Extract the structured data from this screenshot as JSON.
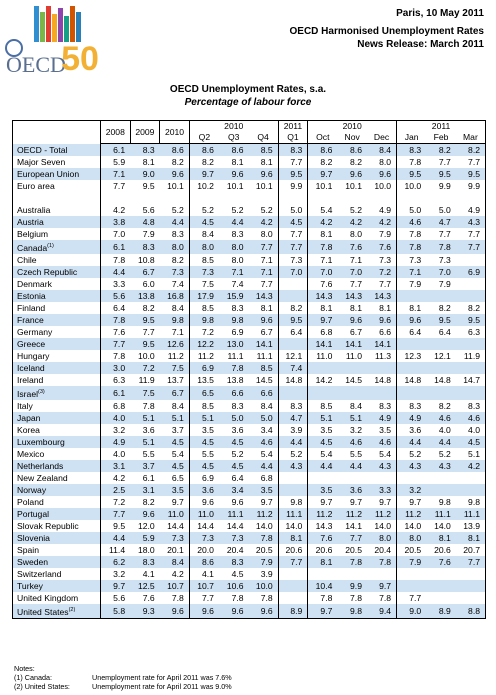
{
  "logo": {
    "text": "OECD",
    "anniversary": "50"
  },
  "header": {
    "date": "Paris, 10 May 2011",
    "title": "OECD Harmonised Unemployment Rates",
    "release": "News Release: March 2011"
  },
  "title": "OECD Unemployment Rates, s.a.",
  "subtitle": "Percentage of labour force",
  "table": {
    "years": [
      "2008",
      "2009",
      "2010"
    ],
    "groups": [
      {
        "label": "2010",
        "cols": [
          "Q2",
          "Q3",
          "Q4"
        ]
      },
      {
        "label": "2011",
        "cols": [
          "Q1"
        ]
      },
      {
        "label": "2010",
        "cols": [
          "Oct",
          "Nov",
          "Dec"
        ]
      },
      {
        "label": "2011",
        "cols": [
          "Jan",
          "Feb",
          "Mar"
        ]
      }
    ],
    "aggregates": [
      {
        "name": "OECD - Total",
        "cells": [
          "6.1",
          "8.3",
          "8.6",
          "8.6",
          "8.6",
          "8.5",
          "8.3",
          "8.6",
          "8.6",
          "8.4",
          "8.3",
          "8.2",
          "8.2"
        ]
      },
      {
        "name": "Major Seven",
        "cells": [
          "5.9",
          "8.1",
          "8.2",
          "8.2",
          "8.1",
          "8.1",
          "7.7",
          "8.2",
          "8.2",
          "8.0",
          "7.8",
          "7.7",
          "7.7"
        ]
      },
      {
        "name": "European Union",
        "cells": [
          "7.1",
          "9.0",
          "9.6",
          "9.7",
          "9.6",
          "9.6",
          "9.5",
          "9.7",
          "9.6",
          "9.6",
          "9.5",
          "9.5",
          "9.5"
        ]
      },
      {
        "name": "Euro area",
        "cells": [
          "7.7",
          "9.5",
          "10.1",
          "10.2",
          "10.1",
          "10.1",
          "9.9",
          "10.1",
          "10.1",
          "10.0",
          "10.0",
          "9.9",
          "9.9"
        ]
      }
    ],
    "countries": [
      {
        "name": "Australia",
        "cells": [
          "4.2",
          "5.6",
          "5.2",
          "5.2",
          "5.2",
          "5.2",
          "5.0",
          "5.4",
          "5.2",
          "4.9",
          "5.0",
          "5.0",
          "4.9"
        ]
      },
      {
        "name": "Austria",
        "cells": [
          "3.8",
          "4.8",
          "4.4",
          "4.5",
          "4.4",
          "4.2",
          "4.5",
          "4.2",
          "4.2",
          "4.2",
          "4.6",
          "4.7",
          "4.3"
        ]
      },
      {
        "name": "Belgium",
        "cells": [
          "7.0",
          "7.9",
          "8.3",
          "8.4",
          "8.3",
          "8.0",
          "7.7",
          "8.1",
          "8.0",
          "7.9",
          "7.8",
          "7.7",
          "7.7"
        ]
      },
      {
        "name": "Canada",
        "note": "(1)",
        "cells": [
          "6.1",
          "8.3",
          "8.0",
          "8.0",
          "8.0",
          "7.7",
          "7.7",
          "7.8",
          "7.6",
          "7.6",
          "7.8",
          "7.8",
          "7.7"
        ]
      },
      {
        "name": "Chile",
        "cells": [
          "7.8",
          "10.8",
          "8.2",
          "8.5",
          "8.0",
          "7.1",
          "7.3",
          "7.1",
          "7.1",
          "7.3",
          "7.3",
          "7.3",
          null
        ]
      },
      {
        "name": "Czech Republic",
        "cells": [
          "4.4",
          "6.7",
          "7.3",
          "7.3",
          "7.1",
          "7.1",
          "7.0",
          "7.0",
          "7.0",
          "7.2",
          "7.1",
          "7.0",
          "6.9"
        ]
      },
      {
        "name": "Denmark",
        "cells": [
          "3.3",
          "6.0",
          "7.4",
          "7.5",
          "7.4",
          "7.7",
          null,
          "7.6",
          "7.7",
          "7.7",
          "7.9",
          "7.9",
          null
        ]
      },
      {
        "name": "Estonia",
        "cells": [
          "5.6",
          "13.8",
          "16.8",
          "17.9",
          "15.9",
          "14.3",
          null,
          "14.3",
          "14.3",
          "14.3",
          null,
          null,
          null
        ]
      },
      {
        "name": "Finland",
        "cells": [
          "6.4",
          "8.2",
          "8.4",
          "8.5",
          "8.3",
          "8.1",
          "8.2",
          "8.1",
          "8.1",
          "8.1",
          "8.1",
          "8.2",
          "8.2"
        ]
      },
      {
        "name": "France",
        "cells": [
          "7.8",
          "9.5",
          "9.8",
          "9.8",
          "9.8",
          "9.6",
          "9.5",
          "9.7",
          "9.6",
          "9.6",
          "9.6",
          "9.5",
          "9.5"
        ]
      },
      {
        "name": "Germany",
        "cells": [
          "7.6",
          "7.7",
          "7.1",
          "7.2",
          "6.9",
          "6.7",
          "6.4",
          "6.8",
          "6.7",
          "6.6",
          "6.4",
          "6.4",
          "6.3"
        ]
      },
      {
        "name": "Greece",
        "cells": [
          "7.7",
          "9.5",
          "12.6",
          "12.2",
          "13.0",
          "14.1",
          null,
          "14.1",
          "14.1",
          "14.1",
          null,
          null,
          null
        ]
      },
      {
        "name": "Hungary",
        "cells": [
          "7.8",
          "10.0",
          "11.2",
          "11.2",
          "11.1",
          "11.1",
          "12.1",
          "11.0",
          "11.0",
          "11.3",
          "12.3",
          "12.1",
          "11.9"
        ]
      },
      {
        "name": "Iceland",
        "cells": [
          "3.0",
          "7.2",
          "7.5",
          "6.9",
          "7.8",
          "8.5",
          "7.4",
          null,
          null,
          null,
          null,
          null,
          null
        ]
      },
      {
        "name": "Ireland",
        "cells": [
          "6.3",
          "11.9",
          "13.7",
          "13.5",
          "13.8",
          "14.5",
          "14.8",
          "14.2",
          "14.5",
          "14.8",
          "14.8",
          "14.8",
          "14.7"
        ]
      },
      {
        "name": "Israel",
        "note": "(3)",
        "cells": [
          "6.1",
          "7.5",
          "6.7",
          "6.5",
          "6.6",
          "6.6",
          null,
          null,
          null,
          null,
          null,
          null,
          null
        ]
      },
      {
        "name": "Italy",
        "cells": [
          "6.8",
          "7.8",
          "8.4",
          "8.5",
          "8.3",
          "8.4",
          "8.3",
          "8.5",
          "8.4",
          "8.3",
          "8.3",
          "8.2",
          "8.3"
        ]
      },
      {
        "name": "Japan",
        "cells": [
          "4.0",
          "5.1",
          "5.1",
          "5.1",
          "5.0",
          "5.0",
          "4.7",
          "5.1",
          "5.1",
          "4.9",
          "4.9",
          "4.6",
          "4.6"
        ]
      },
      {
        "name": "Korea",
        "cells": [
          "3.2",
          "3.6",
          "3.7",
          "3.5",
          "3.6",
          "3.4",
          "3.9",
          "3.5",
          "3.2",
          "3.5",
          "3.6",
          "4.0",
          "4.0"
        ]
      },
      {
        "name": "Luxembourg",
        "cells": [
          "4.9",
          "5.1",
          "4.5",
          "4.5",
          "4.5",
          "4.6",
          "4.4",
          "4.5",
          "4.6",
          "4.6",
          "4.4",
          "4.4",
          "4.5"
        ]
      },
      {
        "name": "Mexico",
        "cells": [
          "4.0",
          "5.5",
          "5.4",
          "5.5",
          "5.2",
          "5.4",
          "5.2",
          "5.4",
          "5.5",
          "5.4",
          "5.2",
          "5.2",
          "5.1"
        ]
      },
      {
        "name": "Netherlands",
        "cells": [
          "3.1",
          "3.7",
          "4.5",
          "4.5",
          "4.5",
          "4.4",
          "4.3",
          "4.4",
          "4.4",
          "4.3",
          "4.3",
          "4.3",
          "4.2"
        ]
      },
      {
        "name": "New Zealand",
        "cells": [
          "4.2",
          "6.1",
          "6.5",
          "6.9",
          "6.4",
          "6.8",
          null,
          null,
          null,
          null,
          null,
          null,
          null
        ]
      },
      {
        "name": "Norway",
        "cells": [
          "2.5",
          "3.1",
          "3.5",
          "3.6",
          "3.4",
          "3.5",
          null,
          "3.5",
          "3.6",
          "3.3",
          "3.2",
          null,
          null
        ]
      },
      {
        "name": "Poland",
        "cells": [
          "7.2",
          "8.2",
          "9.7",
          "9.6",
          "9.6",
          "9.7",
          "9.8",
          "9.7",
          "9.7",
          "9.7",
          "9.7",
          "9.8",
          "9.8"
        ]
      },
      {
        "name": "Portugal",
        "cells": [
          "7.7",
          "9.6",
          "11.0",
          "11.0",
          "11.1",
          "11.2",
          "11.1",
          "11.2",
          "11.2",
          "11.2",
          "11.2",
          "11.1",
          "11.1"
        ]
      },
      {
        "name": "Slovak Republic",
        "cells": [
          "9.5",
          "12.0",
          "14.4",
          "14.4",
          "14.4",
          "14.0",
          "14.0",
          "14.3",
          "14.1",
          "14.0",
          "14.0",
          "14.0",
          "13.9"
        ]
      },
      {
        "name": "Slovenia",
        "cells": [
          "4.4",
          "5.9",
          "7.3",
          "7.3",
          "7.3",
          "7.8",
          "8.1",
          "7.6",
          "7.7",
          "8.0",
          "8.0",
          "8.1",
          "8.1"
        ]
      },
      {
        "name": "Spain",
        "cells": [
          "11.4",
          "18.0",
          "20.1",
          "20.0",
          "20.4",
          "20.5",
          "20.6",
          "20.6",
          "20.5",
          "20.4",
          "20.5",
          "20.6",
          "20.7"
        ]
      },
      {
        "name": "Sweden",
        "cells": [
          "6.2",
          "8.3",
          "8.4",
          "8.6",
          "8.3",
          "7.9",
          "7.7",
          "8.1",
          "7.8",
          "7.8",
          "7.9",
          "7.6",
          "7.7"
        ]
      },
      {
        "name": "Switzerland",
        "cells": [
          "3.2",
          "4.1",
          "4.2",
          "4.1",
          "4.5",
          "3.9",
          null,
          null,
          null,
          null,
          null,
          null,
          null
        ]
      },
      {
        "name": "Turkey",
        "cells": [
          "9.7",
          "12.5",
          "10.7",
          "10.7",
          "10.6",
          "10.0",
          null,
          "10.4",
          "9.9",
          "9.7",
          null,
          null,
          null
        ]
      },
      {
        "name": "United Kingdom",
        "cells": [
          "5.6",
          "7.6",
          "7.8",
          "7.7",
          "7.8",
          "7.8",
          null,
          "7.8",
          "7.8",
          "7.8",
          "7.7",
          null,
          null
        ]
      },
      {
        "name": "United States",
        "note": "(2)",
        "cells": [
          "5.8",
          "9.3",
          "9.6",
          "9.6",
          "9.6",
          "9.6",
          "8.9",
          "9.7",
          "9.8",
          "9.4",
          "9.0",
          "8.9",
          "8.8"
        ]
      }
    ]
  },
  "notes": {
    "heading": "Notes:",
    "items": [
      {
        "label": "(1) Canada:",
        "text": "Unemployment rate for April 2011 was 7.6%"
      },
      {
        "label": "(2) United States:",
        "text": "Unemployment rate for April 2011 was 9.0%"
      }
    ]
  }
}
